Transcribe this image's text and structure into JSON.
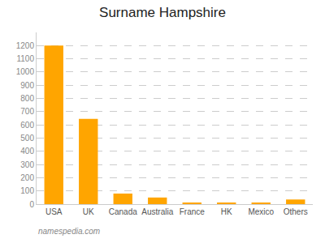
{
  "chart_data": {
    "type": "bar",
    "title": "Surname Hampshire",
    "categories": [
      "USA",
      "UK",
      "Canada",
      "Australia",
      "France",
      "HK",
      "Mexico",
      "Others"
    ],
    "values": [
      1200,
      645,
      80,
      50,
      10,
      10,
      10,
      35
    ],
    "color": "#FFA500",
    "ylim": [
      0,
      1300
    ],
    "yticks": [
      0,
      100,
      200,
      300,
      400,
      500,
      600,
      700,
      800,
      900,
      1000,
      1100,
      1200
    ],
    "grid": true,
    "annotations": [
      "namespedia.com"
    ]
  }
}
